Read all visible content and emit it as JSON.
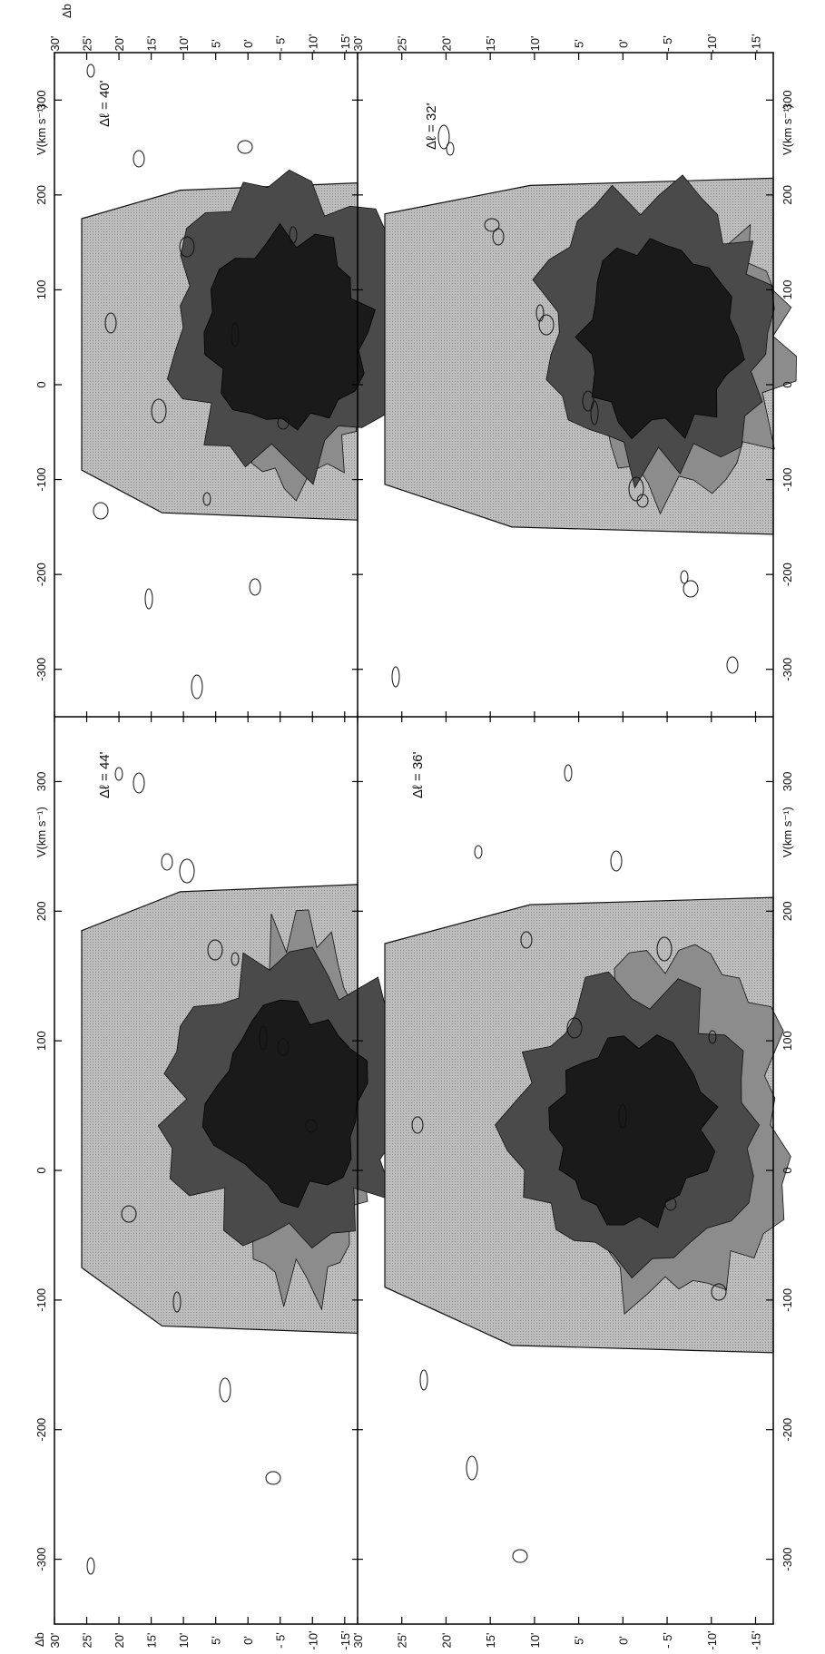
{
  "figure": {
    "velocity_axis_label": "V(km s⁻¹)",
    "latitude_axis_label": "Δb",
    "velocity_ticks": [
      "-300",
      "-200",
      "-100",
      "0",
      "100",
      "200",
      "300"
    ],
    "latitude_ticks": [
      "30'",
      "25'",
      "20'",
      "15'",
      "10'",
      "5'",
      "0'",
      "- 5'",
      "-10'",
      "-15'"
    ]
  },
  "chart_data": [
    {
      "type": "heatmap",
      "panel_label": "Δℓ = 40'",
      "xlabel": "V(km s⁻¹)",
      "ylabel": "Δb",
      "xlim": [
        -350,
        350
      ],
      "ylim": [
        -17,
        30
      ],
      "emission_velocity_range": [
        -135,
        205
      ],
      "peak": {
        "v": 60,
        "b": -5
      },
      "shading_levels": 4
    },
    {
      "type": "heatmap",
      "panel_label": "Δℓ = 44'",
      "xlabel": "V(km s⁻¹)",
      "ylabel": "Δb",
      "xlim": [
        -350,
        350
      ],
      "ylim": [
        -17,
        30
      ],
      "emission_velocity_range": [
        -120,
        215
      ],
      "peak": {
        "v": 55,
        "b": -5
      },
      "shading_levels": 4
    },
    {
      "type": "heatmap",
      "panel_label": "Δℓ = 32'",
      "xlabel": "V(km s⁻¹)",
      "ylabel": "Δb",
      "xlim": [
        -350,
        350
      ],
      "ylim": [
        -17,
        30
      ],
      "emission_velocity_range": [
        -150,
        210
      ],
      "peak": {
        "v": 55,
        "b": -3
      },
      "shading_levels": 4
    },
    {
      "type": "heatmap",
      "panel_label": "Δℓ = 36'",
      "xlabel": "V(km s⁻¹)",
      "ylabel": "Δb",
      "xlim": [
        -350,
        350
      ],
      "ylim": [
        -17,
        30
      ],
      "emission_velocity_range": [
        -135,
        205
      ],
      "peak": {
        "v": 35,
        "b": 0
      },
      "shading_levels": 4
    }
  ]
}
